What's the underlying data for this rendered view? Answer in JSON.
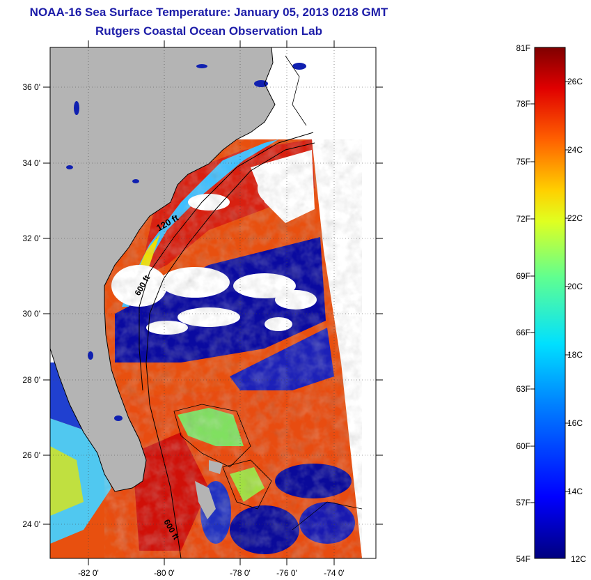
{
  "title": {
    "line1": "NOAA-16 Sea Surface Temperature:  January 05, 2013 0218 GMT",
    "line2": "Rutgers Coastal Ocean Observation Lab"
  },
  "map": {
    "lat_ticks": [
      "36 0'",
      "34 0'",
      "32 0'",
      "30 0'",
      "28 0'",
      "26 0'",
      "24 0'"
    ],
    "lon_ticks": [
      "-82 0'",
      "-80 0'",
      "-78 0'",
      "-76 0'",
      "-74 0'"
    ],
    "isobath_labels": [
      "120 ft",
      "600 ft",
      "600 ft"
    ]
  },
  "colorbar": {
    "fahrenheit": [
      "81F",
      "78F",
      "75F",
      "72F",
      "69F",
      "66F",
      "63F",
      "60F",
      "57F",
      "54F"
    ],
    "celsius": [
      "26C",
      "24C",
      "22C",
      "20C",
      "18C",
      "16C",
      "14C",
      "12C"
    ]
  },
  "colors": {
    "title": "#1c1ca8",
    "land": "#b4b4b4",
    "cloud": "#ffffff",
    "cold": "#00008f",
    "warm": "#d8140a"
  }
}
